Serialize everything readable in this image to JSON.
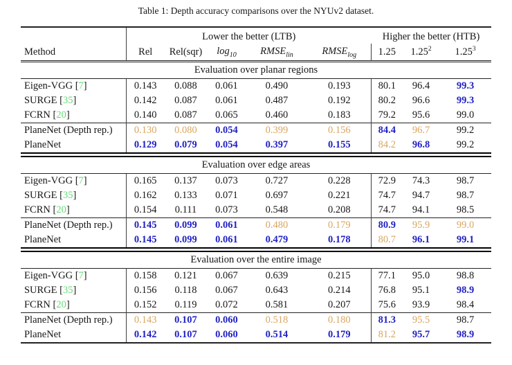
{
  "caption": "Table 1: Depth accuracy comparisons over the NYUv2 dataset.",
  "colors": {
    "best_blue": "#2121c4",
    "second_best_orange": "#d9a55f",
    "citation_green": "#63dc74",
    "text_ink": "#161616"
  },
  "header": {
    "method": "Method",
    "ltb": "Lower the better (LTB)",
    "htb": "Higher the better (HTB)",
    "cols": [
      {
        "base": "Rel"
      },
      {
        "base": "Rel(sqr)"
      },
      {
        "base": "log",
        "sub": "10"
      },
      {
        "base": "RMSE",
        "sub": "lin"
      },
      {
        "base": "RMSE",
        "sub": "log"
      },
      {
        "base": "1.25"
      },
      {
        "base": "1.25",
        "sup": "2"
      },
      {
        "base": "1.25",
        "sup": "3"
      }
    ]
  },
  "legend": {
    "best_style": "bold blue",
    "second_best_style": "orange"
  },
  "sections": [
    {
      "title": "Evaluation over planar regions",
      "rows": [
        {
          "method": "Eigen-VGG",
          "cite": "7",
          "rule_above": false,
          "values": [
            "0.143",
            "0.088",
            "0.061",
            "0.490",
            "0.193",
            "80.1",
            "96.4",
            "99.3"
          ],
          "styles": [
            "k",
            "k",
            "k",
            "k",
            "k",
            "k",
            "k",
            "b"
          ]
        },
        {
          "method": "SURGE",
          "cite": "35",
          "rule_above": false,
          "values": [
            "0.142",
            "0.087",
            "0.061",
            "0.487",
            "0.192",
            "80.2",
            "96.6",
            "99.3"
          ],
          "styles": [
            "k",
            "k",
            "k",
            "k",
            "k",
            "k",
            "k",
            "b"
          ]
        },
        {
          "method": "FCRN",
          "cite": "20",
          "rule_above": false,
          "values": [
            "0.140",
            "0.087",
            "0.065",
            "0.460",
            "0.183",
            "79.2",
            "95.6",
            "99.0"
          ],
          "styles": [
            "k",
            "k",
            "k",
            "k",
            "k",
            "k",
            "k",
            "k"
          ]
        },
        {
          "method": "PlaneNet (Depth rep.)",
          "cite": null,
          "rule_above": true,
          "values": [
            "0.130",
            "0.080",
            "0.054",
            "0.399",
            "0.156",
            "84.4",
            "96.7",
            "99.2"
          ],
          "styles": [
            "o",
            "o",
            "b",
            "o",
            "o",
            "b",
            "o",
            "k"
          ]
        },
        {
          "method": "PlaneNet",
          "cite": null,
          "rule_above": false,
          "values": [
            "0.129",
            "0.079",
            "0.054",
            "0.397",
            "0.155",
            "84.2",
            "96.8",
            "99.2"
          ],
          "styles": [
            "b",
            "b",
            "b",
            "b",
            "b",
            "o",
            "b",
            "k"
          ]
        }
      ]
    },
    {
      "title": "Evaluation over edge areas",
      "rows": [
        {
          "method": "Eigen-VGG",
          "cite": "7",
          "rule_above": false,
          "values": [
            "0.165",
            "0.137",
            "0.073",
            "0.727",
            "0.228",
            "72.9",
            "74.3",
            "98.7"
          ],
          "styles": [
            "k",
            "k",
            "k",
            "k",
            "k",
            "k",
            "k",
            "k"
          ]
        },
        {
          "method": "SURGE",
          "cite": "35",
          "rule_above": false,
          "values": [
            "0.162",
            "0.133",
            "0.071",
            "0.697",
            "0.221",
            "74.7",
            "94.7",
            "98.7"
          ],
          "styles": [
            "k",
            "k",
            "k",
            "k",
            "k",
            "k",
            "k",
            "k"
          ]
        },
        {
          "method": "FCRN",
          "cite": "20",
          "rule_above": false,
          "values": [
            "0.154",
            "0.111",
            "0.073",
            "0.548",
            "0.208",
            "74.7",
            "94.1",
            "98.5"
          ],
          "styles": [
            "k",
            "k",
            "k",
            "k",
            "k",
            "k",
            "k",
            "k"
          ]
        },
        {
          "method": "PlaneNet (Depth rep.)",
          "cite": null,
          "rule_above": true,
          "values": [
            "0.145",
            "0.099",
            "0.061",
            "0.480",
            "0.179",
            "80.9",
            "95.9",
            "99.0"
          ],
          "styles": [
            "b",
            "b",
            "b",
            "o",
            "o",
            "b",
            "o",
            "o"
          ]
        },
        {
          "method": "PlaneNet",
          "cite": null,
          "rule_above": false,
          "values": [
            "0.145",
            "0.099",
            "0.061",
            "0.479",
            "0.178",
            "80.7",
            "96.1",
            "99.1"
          ],
          "styles": [
            "b",
            "b",
            "b",
            "b",
            "b",
            "o",
            "b",
            "b"
          ]
        }
      ]
    },
    {
      "title": "Evaluation over the entire image",
      "rows": [
        {
          "method": "Eigen-VGG",
          "cite": "7",
          "rule_above": false,
          "values": [
            "0.158",
            "0.121",
            "0.067",
            "0.639",
            "0.215",
            "77.1",
            "95.0",
            "98.8"
          ],
          "styles": [
            "k",
            "k",
            "k",
            "k",
            "k",
            "k",
            "k",
            "k"
          ]
        },
        {
          "method": "SURGE",
          "cite": "35",
          "rule_above": false,
          "values": [
            "0.156",
            "0.118",
            "0.067",
            "0.643",
            "0.214",
            "76.8",
            "95.1",
            "98.9"
          ],
          "styles": [
            "k",
            "k",
            "k",
            "k",
            "k",
            "k",
            "k",
            "b"
          ]
        },
        {
          "method": "FCRN",
          "cite": "20",
          "rule_above": false,
          "values": [
            "0.152",
            "0.119",
            "0.072",
            "0.581",
            "0.207",
            "75.6",
            "93.9",
            "98.4"
          ],
          "styles": [
            "k",
            "k",
            "k",
            "k",
            "k",
            "k",
            "k",
            "k"
          ]
        },
        {
          "method": "PlaneNet (Depth rep.)",
          "cite": null,
          "rule_above": true,
          "values": [
            "0.143",
            "0.107",
            "0.060",
            "0.518",
            "0.180",
            "81.3",
            "95.5",
            "98.7"
          ],
          "styles": [
            "o",
            "b",
            "b",
            "o",
            "o",
            "b",
            "o",
            "k"
          ]
        },
        {
          "method": "PlaneNet",
          "cite": null,
          "rule_above": false,
          "values": [
            "0.142",
            "0.107",
            "0.060",
            "0.514",
            "0.179",
            "81.2",
            "95.7",
            "98.9"
          ],
          "styles": [
            "b",
            "b",
            "b",
            "b",
            "b",
            "o",
            "b",
            "b"
          ]
        }
      ]
    }
  ]
}
